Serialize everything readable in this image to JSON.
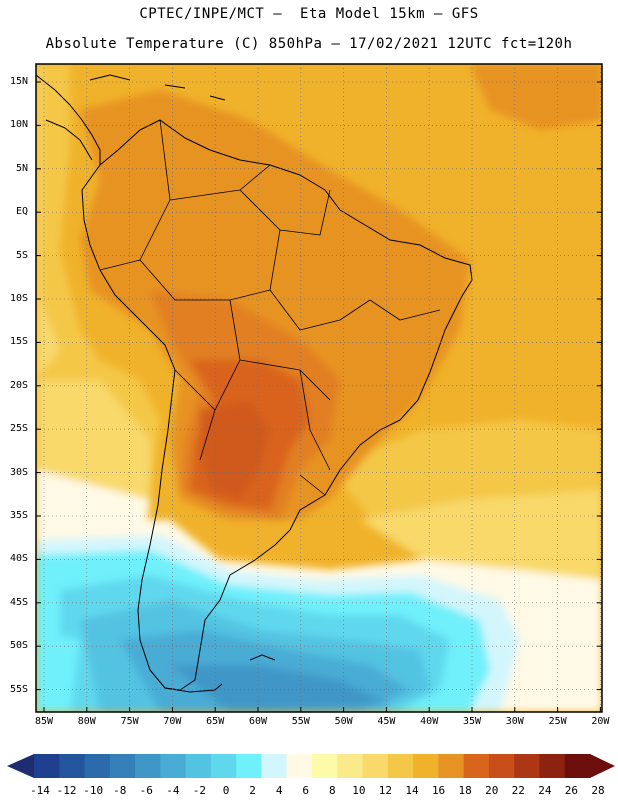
{
  "header": {
    "title_line1": "CPTEC/INPE/MCT –  Eta Model 15km – GFS",
    "title_line2": "Absolute Temperature (C) 850hPa – 17/02/2021 12UTC fct=120h"
  },
  "map": {
    "lat_labels": [
      "15N",
      "10N",
      "5N",
      "EQ",
      "5S",
      "10S",
      "15S",
      "20S",
      "25S",
      "30S",
      "35S",
      "40S",
      "45S",
      "50S",
      "55S"
    ],
    "lon_labels": [
      "85W",
      "80W",
      "75W",
      "70W",
      "65W",
      "60W",
      "55W",
      "50W",
      "45W",
      "40W",
      "35W",
      "30W",
      "25W",
      "20W"
    ]
  },
  "colorbar": {
    "labels": [
      "-14",
      "-12",
      "-10",
      "-8",
      "-6",
      "-4",
      "-2",
      "0",
      "2",
      "4",
      "6",
      "8",
      "10",
      "12",
      "14",
      "16",
      "18",
      "20",
      "22",
      "24",
      "26",
      "28"
    ],
    "colors": [
      "#1f3f8f",
      "#23559c",
      "#2b6aab",
      "#3680b9",
      "#3f97c7",
      "#48acd5",
      "#53c3e2",
      "#5fd8ee",
      "#6ff0fb",
      "#d3f6fc",
      "#fff9e6",
      "#fefba8",
      "#fbea8a",
      "#f8d96a",
      "#f4c746",
      "#f0b22a",
      "#e79324",
      "#d9641c",
      "#c94f1a",
      "#ad3614",
      "#8b2310",
      "#6b0e0c"
    ],
    "under_color": "#1f2c6f",
    "over_color": "#6b0e0c"
  }
}
